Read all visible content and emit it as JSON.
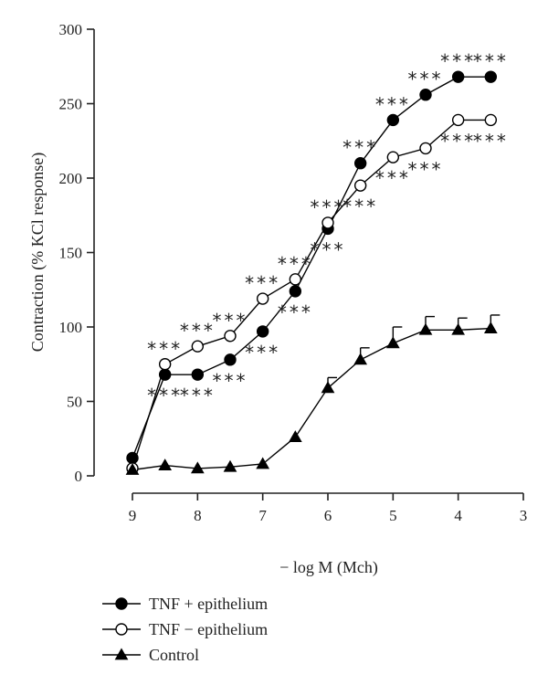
{
  "chart_data": {
    "type": "line",
    "xlabel": "− log M (Mch)",
    "ylabel": "Contraction (% KCl response)",
    "xlim": [
      9,
      3
    ],
    "ylim": [
      0,
      300
    ],
    "x_reversed": true,
    "xticks": [
      9,
      8,
      7,
      6,
      5,
      4,
      3
    ],
    "yticks": [
      0,
      50,
      100,
      150,
      200,
      250,
      300
    ],
    "grid": false,
    "legend_position": "bottom-left",
    "significance_marker": "***",
    "series": [
      {
        "name": "TNF + epithelium",
        "marker": "filled-circle",
        "x": [
          9,
          8.5,
          8,
          7.5,
          7,
          6.5,
          6,
          5.5,
          5,
          4.5,
          4,
          3.5
        ],
        "y": [
          12,
          68,
          68,
          78,
          97,
          124,
          166,
          210,
          239,
          256,
          268,
          268
        ],
        "significance": [
          {
            "x": 8.5,
            "y": 68,
            "text": "***",
            "side": "below"
          },
          {
            "x": 8,
            "y": 68,
            "text": "***",
            "side": "below"
          },
          {
            "x": 7.5,
            "y": 78,
            "text": "***",
            "side": "below"
          },
          {
            "x": 7,
            "y": 97,
            "text": "***",
            "side": "below"
          },
          {
            "x": 6.5,
            "y": 124,
            "text": "***",
            "side": "below"
          },
          {
            "x": 6,
            "y": 166,
            "text": "***",
            "side": "below"
          },
          {
            "x": 5.5,
            "y": 210,
            "text": "***",
            "side": "above"
          },
          {
            "x": 5,
            "y": 239,
            "text": "***",
            "side": "above"
          },
          {
            "x": 4.5,
            "y": 256,
            "text": "***",
            "side": "above"
          },
          {
            "x": 4,
            "y": 268,
            "text": "***",
            "side": "above"
          },
          {
            "x": 3.5,
            "y": 268,
            "text": "***",
            "side": "above"
          }
        ]
      },
      {
        "name": "TNF − epithelium",
        "marker": "open-circle",
        "x": [
          9,
          8.5,
          8,
          7.5,
          7,
          6.5,
          6,
          5.5,
          5,
          4.5,
          4,
          3.5
        ],
        "y": [
          5,
          75,
          87,
          94,
          119,
          132,
          170,
          195,
          214,
          220,
          239,
          239
        ],
        "significance": [
          {
            "x": 8.5,
            "y": 75,
            "text": "***",
            "side": "above"
          },
          {
            "x": 8,
            "y": 87,
            "text": "***",
            "side": "above"
          },
          {
            "x": 7.5,
            "y": 94,
            "text": "***",
            "side": "above"
          },
          {
            "x": 7,
            "y": 119,
            "text": "***",
            "side": "above"
          },
          {
            "x": 6.5,
            "y": 132,
            "text": "***",
            "side": "above"
          },
          {
            "x": 6,
            "y": 170,
            "text": "***",
            "side": "above"
          },
          {
            "x": 5.5,
            "y": 195,
            "text": "***",
            "side": "below"
          },
          {
            "x": 5,
            "y": 214,
            "text": "***",
            "side": "below"
          },
          {
            "x": 4.5,
            "y": 220,
            "text": "***",
            "side": "below"
          },
          {
            "x": 4,
            "y": 239,
            "text": "***",
            "side": "below"
          },
          {
            "x": 3.5,
            "y": 239,
            "text": "***",
            "side": "below"
          }
        ]
      },
      {
        "name": "Control",
        "marker": "filled-triangle",
        "x": [
          9,
          8.5,
          8,
          7.5,
          7,
          6.5,
          6,
          5.5,
          5,
          4.5,
          4,
          3.5
        ],
        "y": [
          4,
          7,
          5,
          6,
          8,
          26,
          59,
          78,
          89,
          98,
          98,
          99
        ],
        "error": [
          0,
          0,
          0,
          0,
          0,
          0,
          7,
          8,
          11,
          9,
          8,
          9
        ]
      }
    ]
  }
}
